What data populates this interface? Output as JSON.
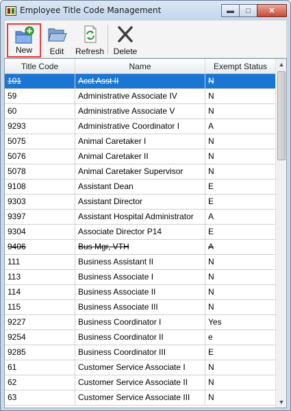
{
  "window": {
    "title": "Employee Title Code Management",
    "buttons": [
      "minimize",
      "maximize",
      "close"
    ]
  },
  "toolbar": {
    "new_label": "New",
    "edit_label": "Edit",
    "refresh_label": "Refresh",
    "delete_label": "Delete",
    "icons": {
      "new": "folder-add-icon",
      "edit": "open-folder-icon",
      "refresh": "refresh-icon",
      "delete": "delete-x-icon"
    }
  },
  "table": {
    "columns": [
      "Title Code",
      "Name",
      "Exempt Status"
    ],
    "selected_index": 0,
    "rows": [
      {
        "code": "101",
        "name": "Acct Asst II",
        "status": "N",
        "struck": true
      },
      {
        "code": "59",
        "name": "Administrative Associate IV",
        "status": "N",
        "struck": false
      },
      {
        "code": "60",
        "name": "Administrative Associate V",
        "status": "N",
        "struck": false
      },
      {
        "code": "9293",
        "name": "Administrative Coordinator I",
        "status": "A",
        "struck": false
      },
      {
        "code": "5075",
        "name": "Animal Caretaker I",
        "status": "N",
        "struck": false
      },
      {
        "code": "5076",
        "name": "Animal Caretaker II",
        "status": "N",
        "struck": false
      },
      {
        "code": "5078",
        "name": "Animal Caretaker Supervisor",
        "status": "N",
        "struck": false
      },
      {
        "code": "9108",
        "name": "Assistant Dean",
        "status": "E",
        "struck": false
      },
      {
        "code": "9303",
        "name": "Assistant Director",
        "status": "E",
        "struck": false
      },
      {
        "code": "9397",
        "name": "Assistant Hospital Administrator",
        "status": "A",
        "struck": false
      },
      {
        "code": "9304",
        "name": "Associate Director P14",
        "status": "E",
        "struck": false
      },
      {
        "code": "9406",
        "name": "Bus Mgr, VTH",
        "status": "A",
        "struck": true
      },
      {
        "code": "111",
        "name": "Business Assistant II",
        "status": "N",
        "struck": false
      },
      {
        "code": "113",
        "name": "Business Associate I",
        "status": "N",
        "struck": false
      },
      {
        "code": "114",
        "name": "Business Associate II",
        "status": "N",
        "struck": false
      },
      {
        "code": "115",
        "name": "Business Associate III",
        "status": "N",
        "struck": false
      },
      {
        "code": "9227",
        "name": "Business Coordinator I",
        "status": "Yes",
        "struck": false
      },
      {
        "code": "9254",
        "name": "Business Coordinator II",
        "status": "e",
        "struck": false
      },
      {
        "code": "9285",
        "name": "Business Coordinator III",
        "status": "E",
        "struck": false
      },
      {
        "code": "61",
        "name": "Customer Service Associate I",
        "status": "N",
        "struck": false
      },
      {
        "code": "62",
        "name": "Customer Service Associate II",
        "status": "N",
        "struck": false
      },
      {
        "code": "63",
        "name": "Customer Service Associate III",
        "status": "N",
        "struck": false
      }
    ]
  },
  "colors": {
    "selection": "#1a76d2",
    "highlight_border": "#e23d3d",
    "title_bar": "#c8d9ec"
  }
}
